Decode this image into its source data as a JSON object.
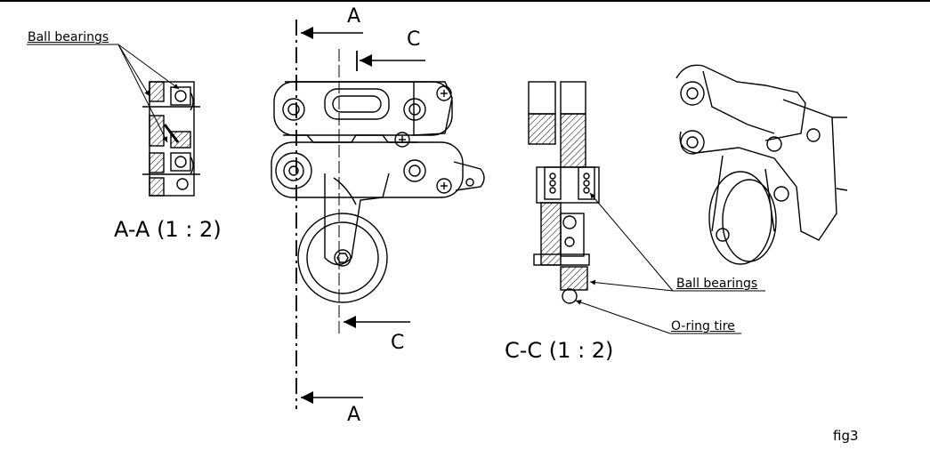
{
  "labels": {
    "ball_bearings_left": "Ball bearings",
    "ball_bearings_right": "Ball bearings",
    "o_ring_tire": "O-ring tire",
    "section_aa_caption": "A-A (1 : 2)",
    "section_cc_caption": "C-C (1 : 2)",
    "cut_a_top": "A",
    "cut_a_bottom": "A",
    "cut_c_top": "C",
    "cut_c_bottom": "C",
    "figure_number": "fig3"
  }
}
